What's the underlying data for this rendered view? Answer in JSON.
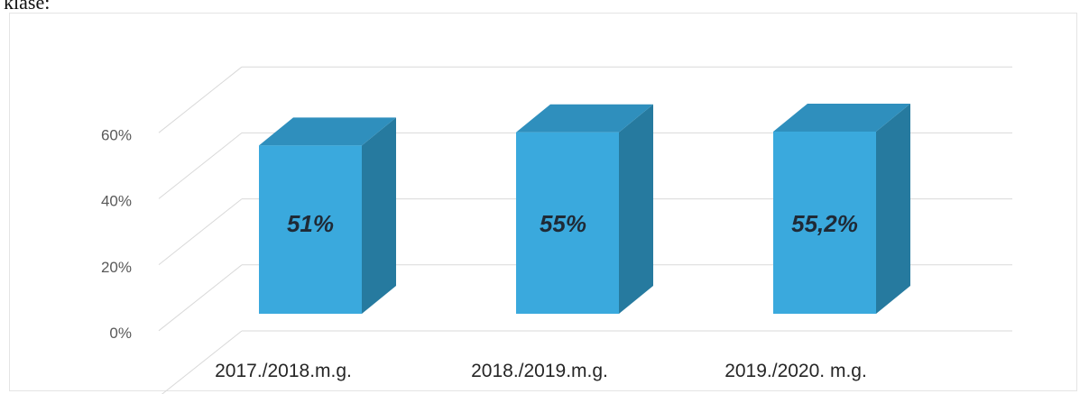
{
  "page": {
    "top_text": "klase:"
  },
  "colors": {
    "bar_front": "#3aa9dd",
    "bar_top": "#2f8fbd",
    "bar_side": "#267a9f",
    "grid": "#d9d9d9",
    "axis_text": "#595959",
    "category_text": "#262626",
    "data_label": "#1f2a36"
  },
  "chart_data": {
    "type": "bar",
    "style": "3d-column",
    "categories": [
      "2017./2018.m.g.",
      "2018./2019.m.g.",
      "2019./2020. m.g."
    ],
    "values": [
      51,
      55,
      55.2
    ],
    "data_labels": [
      "51%",
      "55%",
      "55,2%"
    ],
    "y_ticks": [
      "0%",
      "20%",
      "40%",
      "60%"
    ],
    "y_tick_values": [
      0,
      20,
      40,
      60
    ],
    "ylim": [
      0,
      80
    ],
    "grid": true,
    "legend": "none"
  }
}
